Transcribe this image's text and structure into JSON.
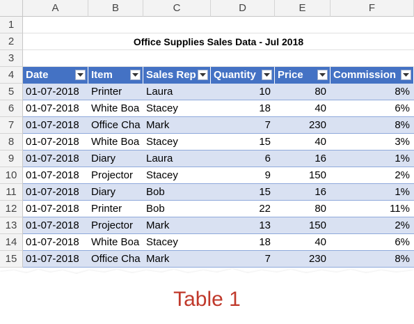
{
  "columns": [
    "A",
    "B",
    "C",
    "D",
    "E",
    "F"
  ],
  "row_numbers": [
    "1",
    "2",
    "3",
    "4",
    "5",
    "6",
    "7",
    "8",
    "9",
    "10",
    "11",
    "12",
    "13",
    "14",
    "15"
  ],
  "title": "Office Supplies Sales Data - Jul 2018",
  "table": {
    "headers": [
      "Date",
      "Item",
      "Sales Rep",
      "Quantity",
      "Price",
      "Commission"
    ],
    "rows": [
      [
        "01-07-2018",
        "Printer",
        "Laura",
        "10",
        "80",
        "8%"
      ],
      [
        "01-07-2018",
        "White Boa",
        "Stacey",
        "18",
        "40",
        "6%"
      ],
      [
        "01-07-2018",
        "Office Cha",
        "Mark",
        "7",
        "230",
        "8%"
      ],
      [
        "01-07-2018",
        "White Boa",
        "Stacey",
        "15",
        "40",
        "3%"
      ],
      [
        "01-07-2018",
        "Diary",
        "Laura",
        "6",
        "16",
        "1%"
      ],
      [
        "01-07-2018",
        "Projector",
        "Stacey",
        "9",
        "150",
        "2%"
      ],
      [
        "01-07-2018",
        "Diary",
        "Bob",
        "15",
        "16",
        "1%"
      ],
      [
        "01-07-2018",
        "Printer",
        "Bob",
        "22",
        "80",
        "11%"
      ],
      [
        "01-07-2018",
        "Projector",
        "Mark",
        "13",
        "150",
        "2%"
      ],
      [
        "01-07-2018",
        "White Boa",
        "Stacey",
        "18",
        "40",
        "6%"
      ],
      [
        "01-07-2018",
        "Office Cha",
        "Mark",
        "7",
        "230",
        "8%"
      ]
    ]
  },
  "caption": "Table 1",
  "colors": {
    "header_blue": "#4472c4",
    "band": "#d9e1f2",
    "caption_red": "#c0392b"
  }
}
